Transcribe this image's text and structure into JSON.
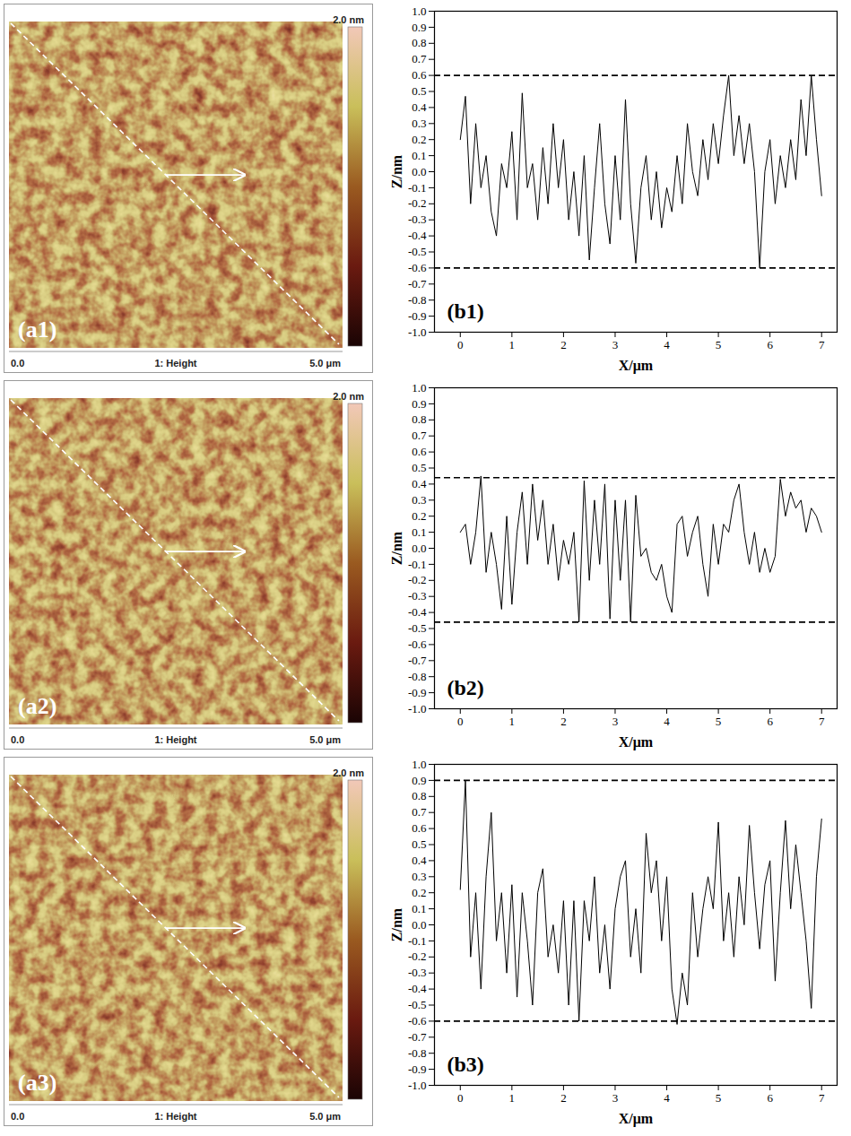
{
  "chart_data": [
    {
      "type": "line",
      "label": "(b1)",
      "x_label": "X/μm",
      "y_label": "Z/nm",
      "color": "#000000",
      "xlim": [
        -0.5,
        7.3
      ],
      "xticks": [
        0,
        1,
        2,
        3,
        4,
        5,
        6,
        7
      ],
      "ylim": [
        -1,
        1
      ],
      "yticks": [
        {
          "value": -1,
          "label": "-1.0"
        },
        -0.9,
        -0.8,
        -0.7,
        -0.6,
        -0.5,
        -0.4,
        -0.3,
        -0.2,
        -0.1,
        {
          "value": 0,
          "label": "0.0"
        },
        0.1,
        0.2,
        0.3,
        0.4,
        0.5,
        0.6,
        0.7,
        0.8,
        0.9,
        {
          "value": 1,
          "label": "1.0"
        }
      ],
      "reference_lines": [
        0.6,
        -0.6
      ],
      "x": [
        0,
        0.1,
        0.2,
        0.3,
        0.4,
        0.5,
        0.6,
        0.7,
        0.8,
        0.9,
        1,
        1.1,
        1.2,
        1.3,
        1.4,
        1.5,
        1.6,
        1.7,
        1.8,
        1.9,
        2,
        2.1,
        2.2,
        2.3,
        2.4,
        2.5,
        2.6,
        2.7,
        2.8,
        2.9,
        3,
        3.1,
        3.2,
        3.3,
        3.4,
        3.5,
        3.6,
        3.7,
        3.8,
        3.9,
        4,
        4.1,
        4.2,
        4.3,
        4.4,
        4.5,
        4.6,
        4.7,
        4.8,
        4.9,
        5,
        5.1,
        5.2,
        5.3,
        5.4,
        5.5,
        5.6,
        5.7,
        5.8,
        5.9,
        6,
        6.1,
        6.2,
        6.3,
        6.4,
        6.5,
        6.6,
        6.7,
        6.8,
        6.9,
        7
      ],
      "values": [
        0.2,
        0.47,
        -0.2,
        0.3,
        -0.1,
        0.1,
        -0.25,
        -0.4,
        0.05,
        -0.1,
        0.25,
        -0.3,
        0.49,
        -0.1,
        0.05,
        -0.3,
        0.15,
        -0.2,
        0.3,
        -0.1,
        0.2,
        -0.3,
        0.0,
        -0.4,
        0.1,
        -0.55,
        -0.1,
        0.3,
        -0.2,
        -0.45,
        0.1,
        -0.3,
        0.45,
        -0.2,
        -0.57,
        -0.1,
        0.1,
        -0.3,
        0.0,
        -0.35,
        -0.1,
        -0.25,
        0.1,
        -0.2,
        0.3,
        0.0,
        -0.15,
        0.2,
        -0.05,
        0.3,
        0.05,
        0.35,
        0.6,
        0.1,
        0.35,
        0.05,
        0.3,
        0.0,
        -0.6,
        0.0,
        0.2,
        -0.2,
        0.1,
        -0.1,
        0.2,
        -0.05,
        0.45,
        0.1,
        0.6,
        0.2,
        -0.15
      ]
    },
    {
      "type": "line",
      "label": "(b2)",
      "x_label": "X/μm",
      "y_label": "Z/nm",
      "color": "#000000",
      "xlim": [
        -0.5,
        7.3
      ],
      "xticks": [
        0,
        1,
        2,
        3,
        4,
        5,
        6,
        7
      ],
      "ylim": [
        -1,
        1
      ],
      "yticks": [
        {
          "value": -1,
          "label": "-1.0"
        },
        -0.9,
        -0.8,
        -0.7,
        -0.6,
        -0.5,
        -0.4,
        -0.3,
        -0.2,
        -0.1,
        {
          "value": 0,
          "label": "0.0"
        },
        0.1,
        0.2,
        0.3,
        0.4,
        0.5,
        0.6,
        0.7,
        0.8,
        0.9,
        {
          "value": 1,
          "label": "1.0"
        }
      ],
      "reference_lines": [
        0.44,
        -0.46
      ],
      "x": [
        0,
        0.1,
        0.2,
        0.3,
        0.4,
        0.5,
        0.6,
        0.7,
        0.8,
        0.9,
        1,
        1.1,
        1.2,
        1.3,
        1.4,
        1.5,
        1.6,
        1.7,
        1.8,
        1.9,
        2,
        2.1,
        2.2,
        2.3,
        2.4,
        2.5,
        2.6,
        2.7,
        2.8,
        2.9,
        3,
        3.1,
        3.2,
        3.3,
        3.4,
        3.5,
        3.6,
        3.7,
        3.8,
        3.9,
        4,
        4.1,
        4.2,
        4.3,
        4.4,
        4.5,
        4.6,
        4.7,
        4.8,
        4.9,
        5,
        5.1,
        5.2,
        5.3,
        5.4,
        5.5,
        5.6,
        5.7,
        5.8,
        5.9,
        6,
        6.1,
        6.2,
        6.3,
        6.4,
        6.5,
        6.6,
        6.7,
        6.8,
        6.9,
        7
      ],
      "values": [
        0.1,
        0.15,
        -0.1,
        0.1,
        0.45,
        -0.15,
        0.1,
        -0.1,
        -0.38,
        0.2,
        -0.35,
        0.1,
        0.35,
        -0.1,
        0.4,
        0.05,
        0.3,
        -0.1,
        0.15,
        -0.2,
        0.05,
        -0.1,
        0.1,
        -0.46,
        0.42,
        -0.2,
        0.3,
        -0.1,
        0.4,
        -0.44,
        0.3,
        -0.2,
        0.3,
        -0.46,
        0.33,
        -0.05,
        0.0,
        -0.15,
        -0.2,
        -0.1,
        -0.3,
        -0.4,
        0.15,
        0.2,
        -0.05,
        0.1,
        0.2,
        -0.1,
        -0.3,
        0.15,
        -0.1,
        0.15,
        0.1,
        0.3,
        0.4,
        0.1,
        -0.1,
        0.1,
        -0.15,
        0.0,
        -0.15,
        -0.05,
        0.43,
        0.2,
        0.35,
        0.25,
        0.3,
        0.1,
        0.25,
        0.2,
        0.1
      ]
    },
    {
      "type": "line",
      "label": "(b3)",
      "x_label": "X/μm",
      "y_label": "Z/nm",
      "color": "#000000",
      "xlim": [
        -0.5,
        7.3
      ],
      "xticks": [
        0,
        1,
        2,
        3,
        4,
        5,
        6,
        7
      ],
      "ylim": [
        -1,
        1
      ],
      "yticks": [
        {
          "value": -1,
          "label": "-1.0"
        },
        -0.9,
        -0.8,
        -0.7,
        -0.6,
        -0.5,
        -0.4,
        -0.3,
        -0.2,
        -0.1,
        {
          "value": 0,
          "label": "0.0"
        },
        0.1,
        0.2,
        0.3,
        0.4,
        0.5,
        0.6,
        0.7,
        0.8,
        0.9,
        {
          "value": 1,
          "label": "1.0"
        }
      ],
      "reference_lines": [
        0.9,
        -0.6
      ],
      "x": [
        0,
        0.1,
        0.2,
        0.3,
        0.4,
        0.5,
        0.6,
        0.7,
        0.8,
        0.9,
        1,
        1.1,
        1.2,
        1.3,
        1.4,
        1.5,
        1.6,
        1.7,
        1.8,
        1.9,
        2,
        2.1,
        2.2,
        2.3,
        2.4,
        2.5,
        2.6,
        2.7,
        2.8,
        2.9,
        3,
        3.1,
        3.2,
        3.3,
        3.4,
        3.5,
        3.6,
        3.7,
        3.8,
        3.9,
        4,
        4.1,
        4.2,
        4.3,
        4.4,
        4.5,
        4.6,
        4.7,
        4.8,
        4.9,
        5,
        5.1,
        5.2,
        5.3,
        5.4,
        5.5,
        5.6,
        5.7,
        5.8,
        5.9,
        6,
        6.1,
        6.2,
        6.3,
        6.4,
        6.5,
        6.6,
        6.7,
        6.8,
        6.9,
        7
      ],
      "values": [
        0.22,
        0.9,
        -0.2,
        0.2,
        -0.4,
        0.3,
        0.7,
        -0.1,
        0.2,
        -0.3,
        0.25,
        -0.45,
        0.2,
        -0.1,
        -0.5,
        0.2,
        0.35,
        -0.2,
        0.0,
        -0.3,
        0.15,
        -0.5,
        0.15,
        -0.6,
        0.15,
        -0.1,
        0.3,
        -0.3,
        0.0,
        -0.4,
        0.1,
        0.3,
        0.4,
        -0.2,
        0.1,
        -0.3,
        0.57,
        0.2,
        0.4,
        -0.1,
        0.3,
        -0.4,
        -0.62,
        -0.3,
        -0.5,
        0.2,
        -0.2,
        0.1,
        0.3,
        0.1,
        0.64,
        -0.1,
        0.2,
        -0.2,
        0.3,
        0.0,
        0.62,
        0.2,
        -0.15,
        0.25,
        0.4,
        -0.35,
        0.2,
        0.65,
        0.1,
        0.5,
        0.2,
        -0.1,
        -0.52,
        0.3,
        0.66
      ]
    }
  ],
  "images": [
    {
      "label": "(a1)",
      "channel": "1: Height",
      "xlim": [
        0,
        5
      ],
      "xticks": [
        {
          "value": 0,
          "label": "0.0"
        },
        {
          "value": 5,
          "label": "5.0 μm"
        }
      ],
      "colorbar": {
        "range": [
          0,
          2
        ],
        "ticks": [
          {
            "value": 2,
            "label": "2.0 nm"
          }
        ]
      }
    },
    {
      "label": "(a2)",
      "channel": "1: Height",
      "xlim": [
        0,
        5
      ],
      "xticks": [
        {
          "value": 0,
          "label": "0.0"
        },
        {
          "value": 5,
          "label": "5.0 μm"
        }
      ],
      "colorbar": {
        "range": [
          0,
          2
        ],
        "ticks": [
          {
            "value": 2,
            "label": "2.0 nm"
          }
        ]
      }
    },
    {
      "label": "(a3)",
      "channel": "1: Height",
      "xlim": [
        0,
        5
      ],
      "xticks": [
        {
          "value": 0,
          "label": "0.0"
        },
        {
          "value": 5,
          "label": "5.0 μm"
        }
      ],
      "colorbar": {
        "range": [
          0,
          2
        ],
        "ticks": [
          {
            "value": 2,
            "label": "2.0 nm"
          }
        ]
      }
    }
  ]
}
